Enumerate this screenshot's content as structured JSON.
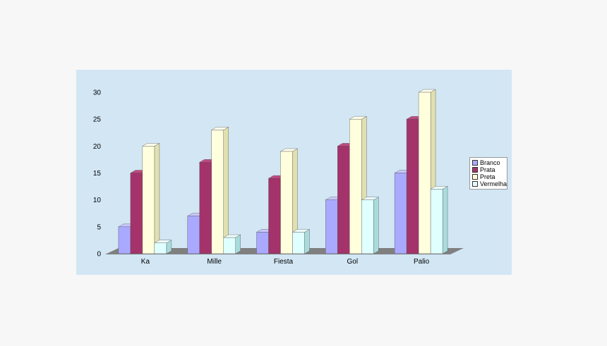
{
  "chart_data": {
    "type": "bar",
    "title": "",
    "xlabel": "",
    "ylabel": "",
    "categories": [
      "Ka",
      "Mille",
      "Fiesta",
      "Gol",
      "Palio"
    ],
    "series": [
      {
        "name": "Branco",
        "values": [
          5,
          7,
          4,
          10,
          15
        ],
        "color": "#a9a9ff",
        "side": "#7070d8",
        "top": "#c8c8ff"
      },
      {
        "name": "Prata",
        "values": [
          15,
          17,
          14,
          20,
          25
        ],
        "color": "#a3336a",
        "side": "#6e1d45",
        "top": "#c04a82"
      },
      {
        "name": "Preta",
        "values": [
          20,
          23,
          19,
          25,
          30
        ],
        "color": "#ffffdd",
        "side": "#e0e0b0",
        "top": "#ffffee"
      },
      {
        "name": "Vermelha",
        "values": [
          2,
          3,
          4,
          10,
          12
        ],
        "color": "#e0ffff",
        "side": "#a8dcdc",
        "top": "#f0ffff"
      }
    ],
    "ylim": [
      0,
      30
    ],
    "yticks": [
      0,
      5,
      10,
      15,
      20,
      25,
      30
    ],
    "legend_position": "right",
    "grid": false,
    "three_d": true,
    "floor_color": "#808080"
  }
}
